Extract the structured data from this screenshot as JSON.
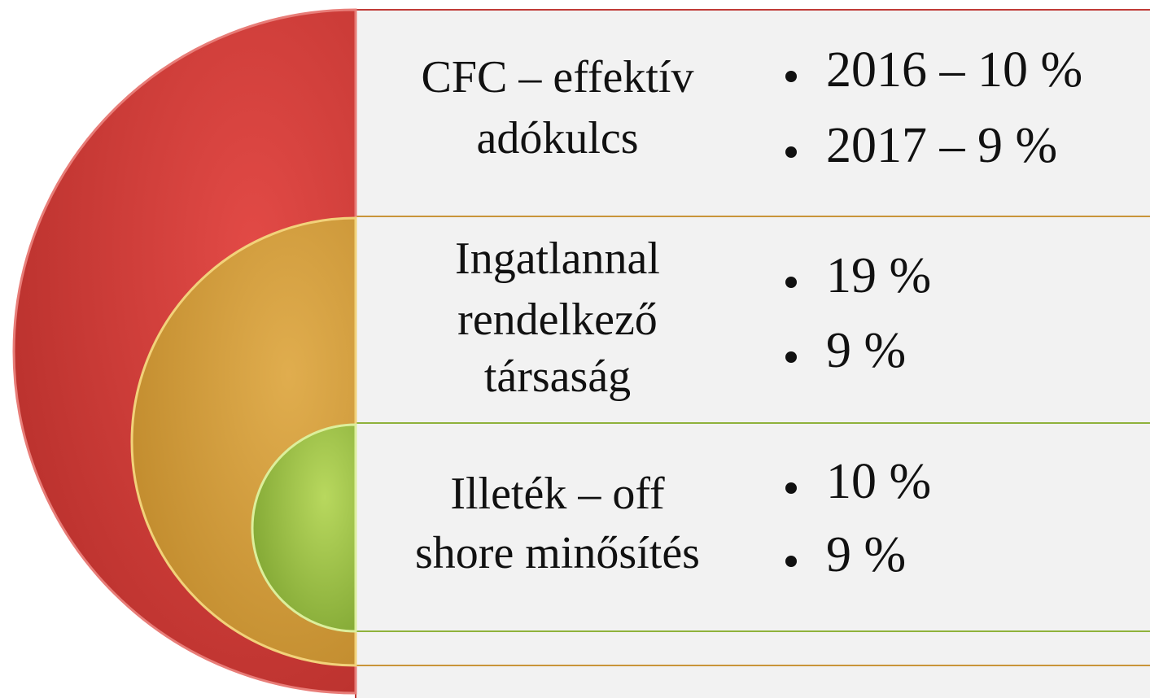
{
  "rows": [
    {
      "label_lines": [
        "CFC – effektív",
        "adókulcs"
      ],
      "bullets": [
        "2016 – 10 %",
        "2017 – 9 %"
      ]
    },
    {
      "label_lines": [
        "Ingatlannal",
        "rendelkező",
        "társaság"
      ],
      "bullets": [
        "19 %",
        "9 %"
      ]
    },
    {
      "label_lines": [
        "Illeték – off",
        "shore minősítés"
      ],
      "bullets": [
        "10 %",
        "9 %"
      ]
    }
  ]
}
